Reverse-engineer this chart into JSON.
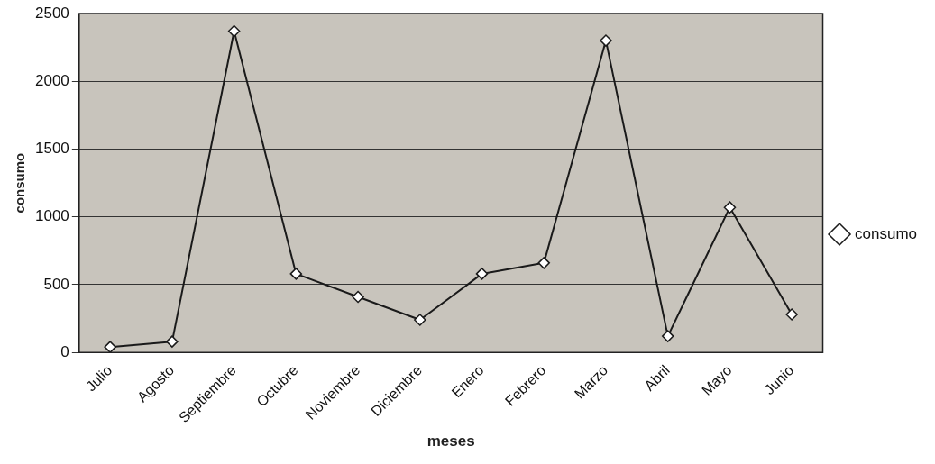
{
  "chart_data": {
    "type": "line",
    "xlabel": "meses",
    "ylabel": "consumo",
    "categories": [
      "Julio",
      "Agosto",
      "Septiembre",
      "Octubre",
      "Noviembre",
      "Diciembre",
      "Enero",
      "Febrero",
      "Marzo",
      "Abril",
      "Mayo",
      "Junio"
    ],
    "series": [
      {
        "name": "consumo",
        "color": "#1a1a1a",
        "values": [
          40,
          80,
          2370,
          580,
          410,
          240,
          580,
          660,
          2300,
          120,
          1070,
          280
        ]
      }
    ],
    "ylim": [
      0,
      2500
    ],
    "yticks": [
      0,
      500,
      1000,
      1500,
      2000,
      2500
    ],
    "grid": "y",
    "legend": "right",
    "marker": "diamond",
    "line_style": "solid"
  }
}
